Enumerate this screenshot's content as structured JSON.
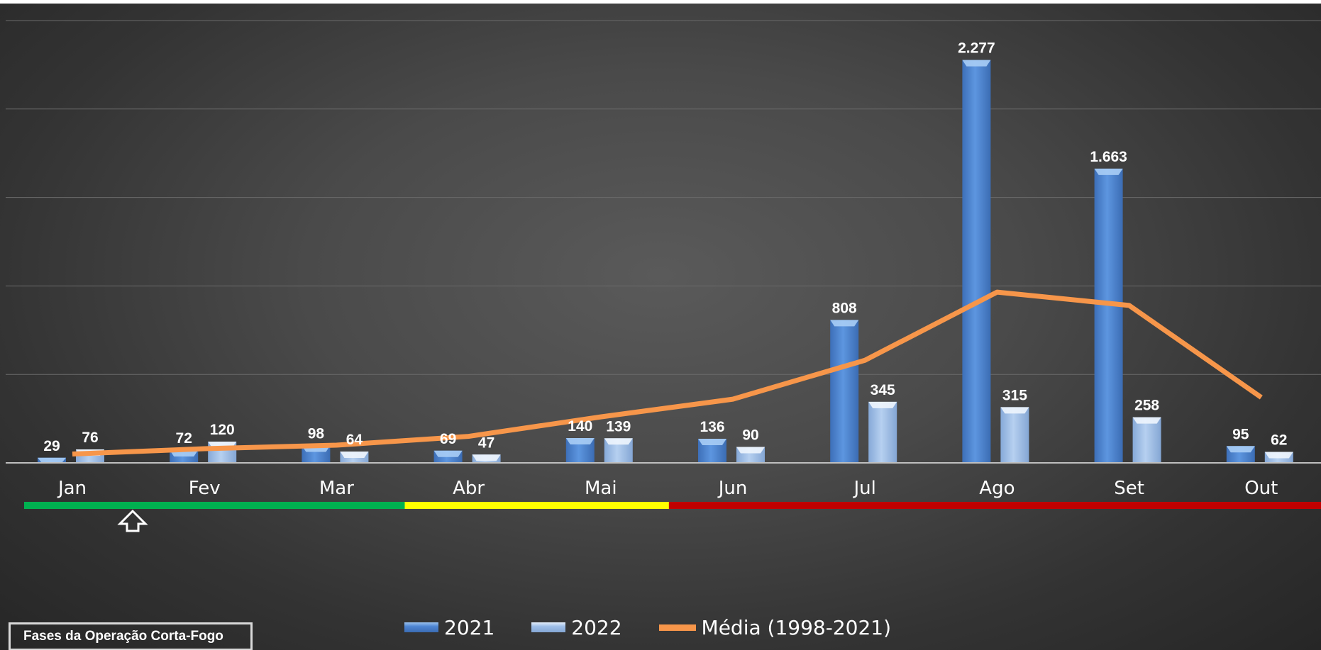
{
  "chart_data": {
    "type": "bar",
    "categories": [
      "Jan",
      "Fev",
      "Mar",
      "Abr",
      "Mai",
      "Jun",
      "Jul",
      "Ago",
      "Set",
      "Out"
    ],
    "series": [
      {
        "name": "2021",
        "values": [
          29,
          72,
          98,
          69,
          140,
          136,
          808,
          2277,
          1663,
          95
        ],
        "labels": [
          "29",
          "72",
          "98",
          "69",
          "140",
          "136",
          "808",
          "2.277",
          "1.663",
          "95"
        ],
        "color": "#4f86d4"
      },
      {
        "name": "2022",
        "values": [
          76,
          120,
          64,
          47,
          139,
          90,
          345,
          315,
          258,
          62
        ],
        "labels": [
          "76",
          "120",
          "64",
          "47",
          "139",
          "90",
          "345",
          "315",
          "258",
          "62"
        ],
        "color": "#9fbfe8"
      }
    ],
    "line_series": {
      "name": "Média (1998-2021)",
      "values": [
        50,
        80,
        100,
        150,
        260,
        360,
        580,
        965,
        890,
        370
      ],
      "color": "#f7964a"
    },
    "ylim": [
      0,
      2500
    ],
    "grid": true,
    "legend_position": "bottom",
    "phases": {
      "label": "Fases da Operação Corta-Fogo",
      "segments": [
        {
          "from": "Jan",
          "to": "Mar",
          "color": "#00b050"
        },
        {
          "from": "Abr",
          "to": "Mai",
          "color": "#ffff00"
        },
        {
          "from": "Jun",
          "to": "Out",
          "color": "#c00000"
        }
      ]
    }
  }
}
